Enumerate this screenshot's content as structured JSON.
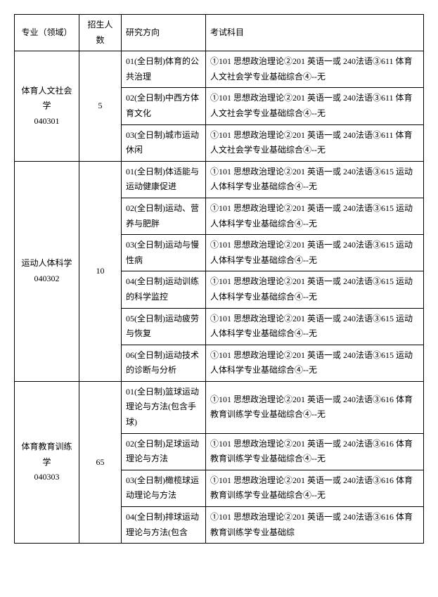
{
  "headers": {
    "major": "专业（领域）",
    "quota": "招生人数",
    "direction": "研究方向",
    "exam": "考试科目"
  },
  "majors": [
    {
      "name": "体育人文社会学",
      "code": "040301",
      "quota": "5",
      "rows": [
        {
          "direction": "01(全日制)体育的公共治理",
          "exam": "①101 思想政治理论②201 英语一或 240法语③611 体育人文社会学专业基础综合④--无"
        },
        {
          "direction": "02(全日制)中西方体育文化",
          "exam": "①101 思想政治理论②201 英语一或 240法语③611 体育人文社会学专业基础综合④--无"
        },
        {
          "direction": "03(全日制)城市运动休闲",
          "exam": "①101 思想政治理论②201 英语一或 240法语③611 体育人文社会学专业基础综合④--无"
        }
      ]
    },
    {
      "name": "运动人体科学",
      "code": "040302",
      "quota": "10",
      "rows": [
        {
          "direction": "01(全日制)体适能与运动健康促进",
          "exam": "①101 思想政治理论②201 英语一或 240法语③615 运动人体科学专业基础综合④--无"
        },
        {
          "direction": "02(全日制)运动、营养与肥胖",
          "exam": "①101 思想政治理论②201 英语一或 240法语③615 运动人体科学专业基础综合④--无"
        },
        {
          "direction": "03(全日制)运动与慢性病",
          "exam": "①101 思想政治理论②201 英语一或 240法语③615 运动人体科学专业基础综合④--无"
        },
        {
          "direction": "04(全日制)运动训练的科学监控",
          "exam": "①101 思想政治理论②201 英语一或 240法语③615 运动人体科学专业基础综合④--无"
        },
        {
          "direction": "05(全日制)运动疲劳与恢复",
          "exam": "①101 思想政治理论②201 英语一或 240法语③615 运动人体科学专业基础综合④--无"
        },
        {
          "direction": "06(全日制)运动技术的诊断与分析",
          "exam": "①101 思想政治理论②201 英语一或 240法语③615 运动人体科学专业基础综合④--无"
        }
      ]
    },
    {
      "name": "体育教育训练学",
      "code": "040303",
      "quota": "65",
      "rows": [
        {
          "direction": "01(全日制)篮球运动理论与方法(包含手球)",
          "exam": "①101 思想政治理论②201 英语一或 240法语③616 体育教育训练学专业基础综合④--无"
        },
        {
          "direction": "02(全日制)足球运动理论与方法",
          "exam": "①101 思想政治理论②201 英语一或 240法语③616 体育教育训练学专业基础综合④--无"
        },
        {
          "direction": "03(全日制)橄榄球运动理论与方法",
          "exam": "①101 思想政治理论②201 英语一或 240法语③616 体育教育训练学专业基础综合④--无"
        },
        {
          "direction": "04(全日制)排球运动理论与方法(包含",
          "exam": "①101 思想政治理论②201 英语一或 240法语③616 体育教育训练学专业基础综"
        }
      ]
    }
  ]
}
